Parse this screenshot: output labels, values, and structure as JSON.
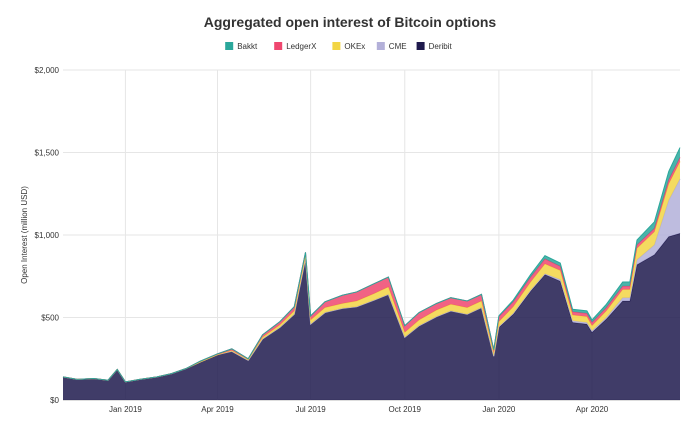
{
  "chart_data": {
    "type": "area",
    "stacked": true,
    "title": "Aggregated open interest of Bitcoin options",
    "ylabel": "Open Interest (million USD)",
    "xlabel": "",
    "ylim": [
      0,
      2000
    ],
    "y_ticks": [
      "$0",
      "$500",
      "$1,000",
      "$1,500",
      "$2,000"
    ],
    "y_tick_values": [
      0,
      500,
      1000,
      1500,
      2000
    ],
    "x_ticks": [
      "Jan 2019",
      "Apr 2019",
      "Jul 2019",
      "Oct 2019",
      "Jan 2020",
      "Apr 2020"
    ],
    "x_tick_dates": [
      "2019-01-01",
      "2019-04-01",
      "2019-07-01",
      "2019-10-01",
      "2020-01-01",
      "2020-04-01"
    ],
    "xlim": [
      "2018-11-01",
      "2020-06-26"
    ],
    "grid": true,
    "legend_position": "top",
    "x": [
      "2018-11-01",
      "2018-11-15",
      "2018-12-01",
      "2018-12-15",
      "2018-12-24",
      "2019-01-01",
      "2019-01-15",
      "2019-02-01",
      "2019-02-15",
      "2019-03-01",
      "2019-03-15",
      "2019-04-01",
      "2019-04-15",
      "2019-05-01",
      "2019-05-15",
      "2019-06-01",
      "2019-06-15",
      "2019-06-26",
      "2019-07-01",
      "2019-07-15",
      "2019-08-01",
      "2019-08-15",
      "2019-09-01",
      "2019-09-15",
      "2019-10-01",
      "2019-10-15",
      "2019-11-01",
      "2019-11-15",
      "2019-12-01",
      "2019-12-15",
      "2019-12-27",
      "2020-01-01",
      "2020-01-15",
      "2020-02-01",
      "2020-02-15",
      "2020-03-01",
      "2020-03-13",
      "2020-03-27",
      "2020-04-01",
      "2020-04-15",
      "2020-05-01",
      "2020-05-08",
      "2020-05-15",
      "2020-06-01",
      "2020-06-15",
      "2020-06-26"
    ],
    "series": [
      {
        "name": "Deribit",
        "color": "#1f1a4d",
        "values": [
          140,
          125,
          130,
          120,
          185,
          110,
          125,
          140,
          160,
          190,
          230,
          275,
          295,
          240,
          370,
          440,
          520,
          855,
          460,
          530,
          555,
          565,
          605,
          640,
          380,
          450,
          505,
          540,
          520,
          560,
          265,
          440,
          520,
          660,
          760,
          720,
          470,
          460,
          410,
          490,
          600,
          600,
          820,
          880,
          990,
          1010
        ]
      },
      {
        "name": "CME",
        "color": "#b3b0d9",
        "values": [
          0,
          0,
          0,
          0,
          0,
          0,
          0,
          0,
          0,
          0,
          0,
          0,
          0,
          0,
          0,
          0,
          0,
          0,
          0,
          0,
          0,
          0,
          0,
          0,
          0,
          0,
          0,
          0,
          0,
          0,
          0,
          5,
          5,
          5,
          5,
          10,
          10,
          10,
          10,
          10,
          20,
          20,
          30,
          60,
          220,
          330
        ]
      },
      {
        "name": "OKEx",
        "color": "#f2d544",
        "values": [
          0,
          0,
          0,
          0,
          0,
          0,
          0,
          0,
          0,
          0,
          0,
          0,
          5,
          5,
          10,
          15,
          20,
          20,
          25,
          30,
          30,
          35,
          40,
          45,
          30,
          35,
          40,
          40,
          40,
          40,
          20,
          30,
          40,
          50,
          60,
          55,
          35,
          35,
          30,
          40,
          50,
          50,
          70,
          80,
          100,
          105
        ]
      },
      {
        "name": "LedgerX",
        "color": "#ef476f",
        "values": [
          0,
          0,
          0,
          0,
          0,
          0,
          0,
          0,
          0,
          0,
          5,
          5,
          10,
          5,
          15,
          20,
          25,
          20,
          25,
          35,
          50,
          55,
          60,
          60,
          40,
          45,
          40,
          40,
          40,
          40,
          20,
          30,
          30,
          30,
          30,
          25,
          20,
          20,
          20,
          20,
          20,
          20,
          20,
          20,
          25,
          25
        ]
      },
      {
        "name": "Bakkt",
        "color": "#2aa79b",
        "values": [
          0,
          0,
          0,
          0,
          0,
          0,
          0,
          0,
          0,
          0,
          0,
          0,
          0,
          0,
          0,
          0,
          0,
          0,
          0,
          0,
          0,
          0,
          0,
          0,
          0,
          0,
          0,
          0,
          0,
          0,
          0,
          5,
          10,
          15,
          20,
          20,
          15,
          15,
          15,
          20,
          25,
          25,
          30,
          40,
          50,
          60
        ]
      }
    ]
  }
}
